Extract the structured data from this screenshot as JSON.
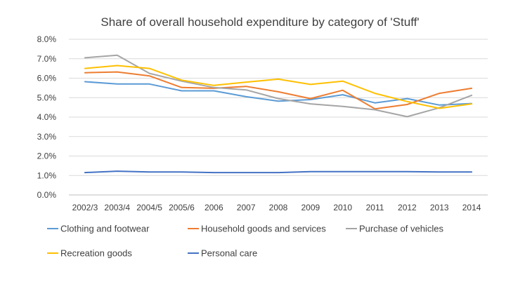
{
  "chart_data": {
    "type": "line",
    "title": "Share of overall household expenditure by category of 'Stuff'",
    "xlabel": "",
    "ylabel": "",
    "ylim": [
      0,
      0.08
    ],
    "y_ticks": [
      {
        "value": 0.0,
        "label": "0.0%"
      },
      {
        "value": 0.01,
        "label": "1.0%"
      },
      {
        "value": 0.02,
        "label": "2.0%"
      },
      {
        "value": 0.03,
        "label": "3.0%"
      },
      {
        "value": 0.04,
        "label": "4.0%"
      },
      {
        "value": 0.05,
        "label": "5.0%"
      },
      {
        "value": 0.06,
        "label": "6.0%"
      },
      {
        "value": 0.07,
        "label": "7.0%"
      },
      {
        "value": 0.08,
        "label": "8.0%"
      }
    ],
    "grid": true,
    "legend_position": "bottom",
    "categories": [
      "2002/3",
      "2003/4",
      "2004/5",
      "2005/6",
      "2006",
      "2007",
      "2008",
      "2009",
      "2010",
      "2011",
      "2012",
      "2013",
      "2014"
    ],
    "series": [
      {
        "name": "Clothing and footwear",
        "color": "#5b9bd5",
        "values": [
          0.0582,
          0.057,
          0.057,
          0.0535,
          0.0535,
          0.0505,
          0.0482,
          0.049,
          0.0515,
          0.0473,
          0.0495,
          0.0462,
          0.047
        ]
      },
      {
        "name": "Household goods and services",
        "color": "#ed7d31",
        "values": [
          0.0628,
          0.0632,
          0.0612,
          0.0552,
          0.0548,
          0.0558,
          0.053,
          0.0495,
          0.0538,
          0.0442,
          0.0465,
          0.0522,
          0.0548
        ]
      },
      {
        "name": "Purchase of vehicles",
        "color": "#a5a5a5",
        "values": [
          0.0705,
          0.0718,
          0.0625,
          0.0585,
          0.0552,
          0.054,
          0.0495,
          0.0468,
          0.0455,
          0.0438,
          0.0402,
          0.0448,
          0.0512
        ]
      },
      {
        "name": "Recreation goods",
        "color": "#ffc000",
        "values": [
          0.065,
          0.0665,
          0.065,
          0.059,
          0.0563,
          0.058,
          0.0595,
          0.0568,
          0.0585,
          0.0522,
          0.048,
          0.0445,
          0.0468
        ]
      },
      {
        "name": "Personal care",
        "color": "#4472c4",
        "values": [
          0.0115,
          0.0122,
          0.0118,
          0.0118,
          0.0115,
          0.0115,
          0.0115,
          0.012,
          0.012,
          0.012,
          0.012,
          0.0118,
          0.0118
        ]
      }
    ]
  }
}
